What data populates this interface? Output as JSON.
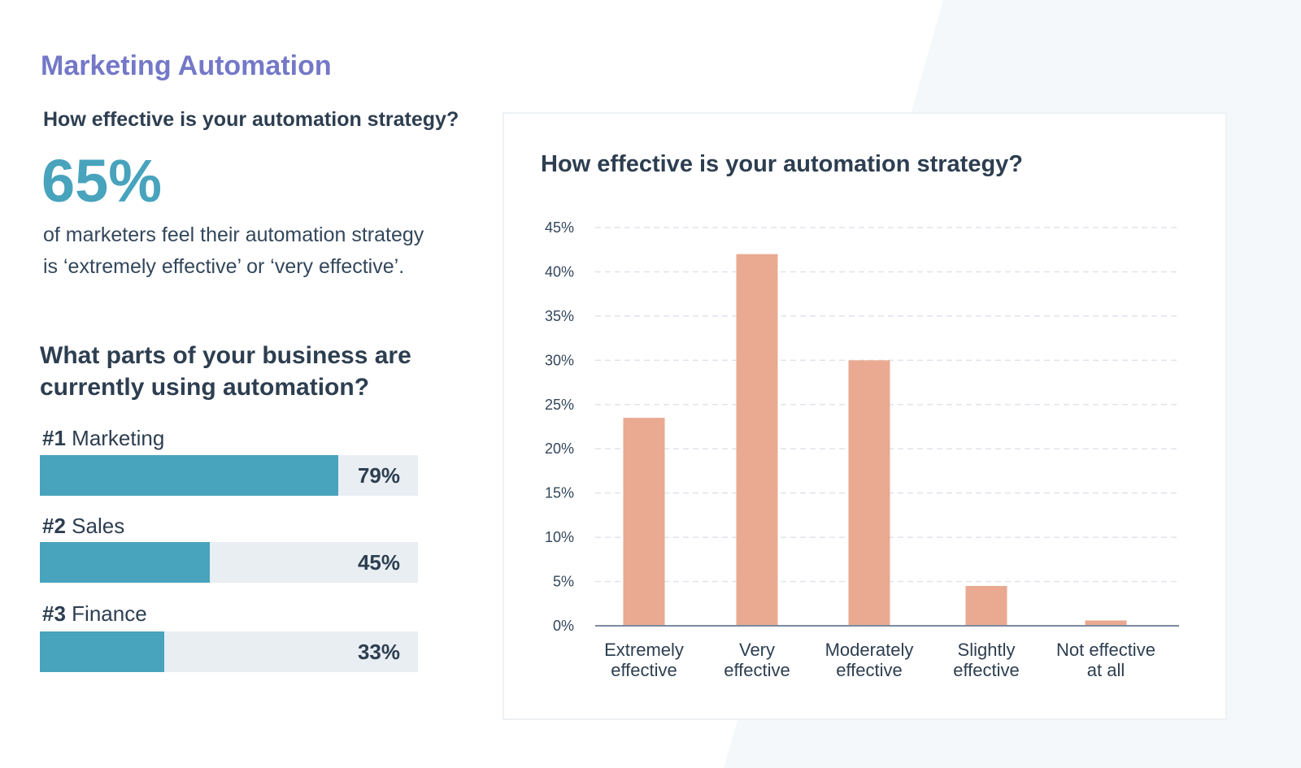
{
  "header": {
    "title": "Marketing Automation",
    "question": "How effective is your automation strategy?"
  },
  "stat": {
    "value": "65%",
    "line1": "of marketers feel their automation strategy",
    "line2": "is ‘extremely effective’ or ‘very effective’."
  },
  "usage": {
    "question_line1": "What parts of your business are",
    "question_line2": "currently using automation?",
    "items": [
      {
        "rank": "#1",
        "name": "Marketing",
        "percent": 79,
        "label": "79%"
      },
      {
        "rank": "#2",
        "name": "Sales",
        "percent": 45,
        "label": "45%"
      },
      {
        "rank": "#3",
        "name": "Finance",
        "percent": 33,
        "label": "33%"
      }
    ]
  },
  "colors": {
    "accent_purple": "#7478c7",
    "accent_teal": "#48a3bd",
    "bar_salmon": "#eaa991",
    "track_gray": "#e9eef3",
    "text_dark": "#2d3e50"
  },
  "chart_data": {
    "type": "bar",
    "title": "How effective is your automation strategy?",
    "categories": [
      [
        "Extremely",
        "effective"
      ],
      [
        "Very",
        "effective"
      ],
      [
        "Moderately",
        "effective"
      ],
      [
        "Slightly",
        "effective"
      ],
      [
        "Not effective",
        "at all"
      ]
    ],
    "values": [
      23.5,
      42,
      30,
      4.5,
      0.6
    ],
    "yticks": [
      "0%",
      "5%",
      "10%",
      "15%",
      "20%",
      "25%",
      "30%",
      "35%",
      "40%",
      "45%"
    ],
    "ylim": [
      0,
      45
    ],
    "grid": true,
    "xlabel": "",
    "ylabel": ""
  }
}
